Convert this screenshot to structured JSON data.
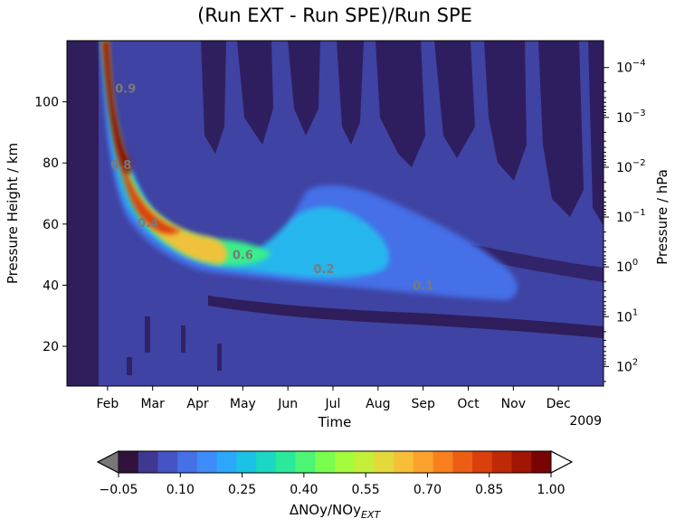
{
  "chart_data": {
    "type": "heatmap",
    "title": "(Run EXT - Run SPE)/Run SPE",
    "xlabel": "Time",
    "ylabel": "Pressure Height / km",
    "y2label": "Pressure / hPa",
    "x_ticks": [
      "Feb",
      "Mar",
      "Apr",
      "May",
      "Jun",
      "Jul",
      "Aug",
      "Sep",
      "Oct",
      "Nov",
      "Dec"
    ],
    "x_year_label": "2009",
    "x_range_months": [
      0.1,
      12.0
    ],
    "y_ticks": [
      20,
      40,
      60,
      80,
      100
    ],
    "ylim": [
      7,
      120
    ],
    "y2_scale": "log",
    "y2_ticks": [
      {
        "base": "10",
        "exp": "−4",
        "hpa": 0.0001
      },
      {
        "base": "10",
        "exp": "−3",
        "hpa": 0.001
      },
      {
        "base": "10",
        "exp": "−2",
        "hpa": 0.01
      },
      {
        "base": "10",
        "exp": "−1",
        "hpa": 0.1
      },
      {
        "base": "10",
        "exp": "0",
        "hpa": 1
      },
      {
        "base": "10",
        "exp": "1",
        "hpa": 10
      },
      {
        "base": "10",
        "exp": "2",
        "hpa": 100
      }
    ],
    "colorbar": {
      "label_main": "ΔNOy/NOy",
      "label_sub": "EXT",
      "ticks": [
        "−0.05",
        "0.10",
        "0.25",
        "0.40",
        "0.55",
        "0.70",
        "0.85",
        "1.00"
      ],
      "tick_values": [
        -0.05,
        0.1,
        0.25,
        0.4,
        0.55,
        0.7,
        0.85,
        1.0
      ],
      "range": [
        -0.05,
        1.0
      ],
      "colors": [
        "#30123b",
        "#3e3891",
        "#4454c4",
        "#4471e6",
        "#3d8cf9",
        "#2ba7fb",
        "#1bc2e3",
        "#1bd7c4",
        "#2ae99b",
        "#4cf574",
        "#79fd4f",
        "#a4fc3c",
        "#c5ee3a",
        "#e3d93a",
        "#f6bf37",
        "#fba22d",
        "#f8801e",
        "#ec5e14",
        "#d9400b",
        "#c02905",
        "#a01504",
        "#7a0403"
      ],
      "extend_low_color": "#777777",
      "extend_high_color": "#ffffff"
    },
    "contour_labels": [
      {
        "text": "0.1",
        "x": 8.0,
        "y": 38.5
      },
      {
        "text": "0.2",
        "x": 5.8,
        "y": 44
      },
      {
        "text": "0.6",
        "x": 4.0,
        "y": 48.5
      },
      {
        "text": "0.4",
        "x": 1.9,
        "y": 59
      },
      {
        "text": "0.8",
        "x": 1.3,
        "y": 78
      },
      {
        "text": "0.9",
        "x": 1.4,
        "y": 103
      }
    ]
  }
}
